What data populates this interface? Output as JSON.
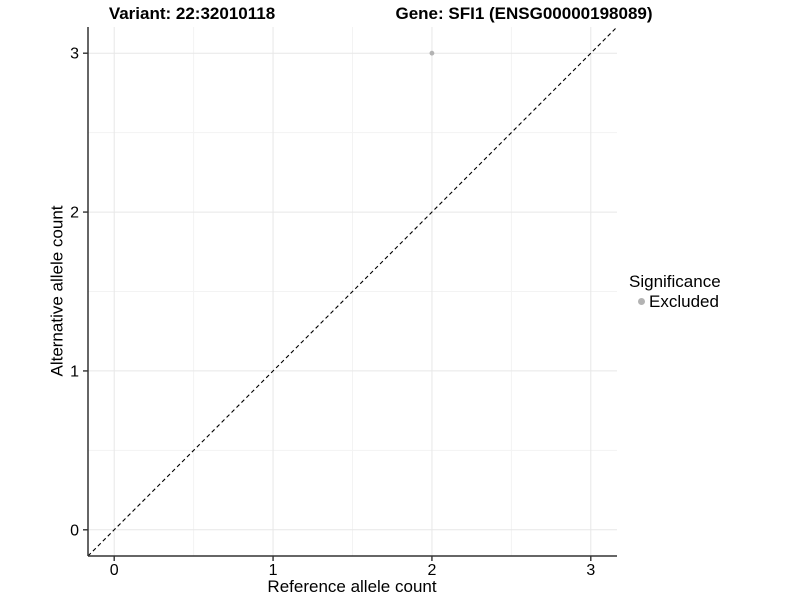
{
  "chart_data": {
    "type": "scatter",
    "title_left": "Variant: 22:32010118",
    "title_right": "Gene: SFI1 (ENSG00000198089)",
    "xlabel": "Reference allele count",
    "ylabel": "Alternative allele count",
    "xticks": [
      0,
      1,
      2,
      3
    ],
    "yticks": [
      0,
      1,
      2,
      3
    ],
    "xlim": [
      -0.165,
      3.165
    ],
    "ylim": [
      -0.165,
      3.165
    ],
    "minor_grid_step": 0.5,
    "grid": true,
    "identity_line": {
      "style": "dashed",
      "slope": 1,
      "intercept": 0,
      "color": "#000000"
    },
    "series": [
      {
        "name": "Excluded",
        "color": "#b3b3b3",
        "points": [
          [
            2,
            3
          ]
        ]
      }
    ],
    "legend": {
      "title": "Significance",
      "position": "right",
      "entries": [
        {
          "label": "Excluded",
          "color": "#b3b3b3"
        }
      ]
    },
    "colors": {
      "background": "#ffffff",
      "axis_line": "#333333",
      "grid_major": "#e7e7e7",
      "grid_minor": "#f3f3f3",
      "tick_label": "#000000"
    }
  }
}
